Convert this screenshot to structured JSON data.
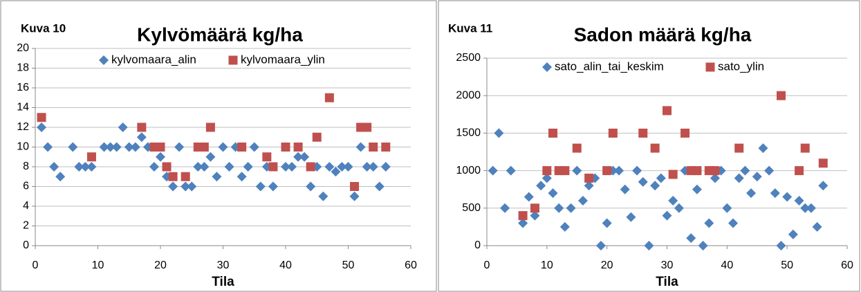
{
  "chart_data": [
    {
      "type": "scatter",
      "label": "Kuva 10",
      "title": "Kylvömäärä kg/ha",
      "xlabel": "Tila",
      "xlim": [
        0,
        60
      ],
      "xticks": [
        0,
        10,
        20,
        30,
        40,
        50,
        60
      ],
      "ylim": [
        0,
        20
      ],
      "yticks": [
        0,
        2,
        4,
        6,
        8,
        10,
        12,
        14,
        16,
        18,
        20
      ],
      "grid": true,
      "series": [
        {
          "name": "kylvomaara_alin",
          "color": "#4f81bd",
          "marker": "diamond",
          "x": [
            1,
            2,
            3,
            4,
            6,
            7,
            8,
            9,
            11,
            12,
            13,
            14,
            15,
            16,
            17,
            18,
            19,
            20,
            21,
            22,
            23,
            24,
            25,
            26,
            27,
            28,
            29,
            30,
            31,
            32,
            33,
            34,
            35,
            36,
            37,
            38,
            40,
            41,
            42,
            43,
            44,
            45,
            46,
            47,
            48,
            49,
            50,
            51,
            52,
            53,
            54,
            55,
            56
          ],
          "values": [
            12,
            10,
            8,
            7,
            10,
            8,
            8,
            8,
            10,
            10,
            10,
            12,
            10,
            10,
            11,
            10,
            8,
            9,
            7,
            6,
            10,
            6,
            6,
            8,
            8,
            9,
            7,
            10,
            8,
            10,
            7,
            8,
            10,
            6,
            8,
            6,
            8,
            8,
            9,
            9,
            6,
            8,
            5,
            8,
            7.5,
            8,
            8,
            5,
            10,
            8,
            8,
            6,
            8
          ]
        },
        {
          "name": "kylvomaara_ylin",
          "color": "#c0504d",
          "marker": "square",
          "x": [
            1,
            9,
            17,
            19,
            20,
            21,
            22,
            24,
            26,
            27,
            28,
            33,
            37,
            38,
            40,
            42,
            44,
            45,
            47,
            51,
            52,
            53,
            54,
            56
          ],
          "values": [
            13,
            9,
            12,
            10,
            10,
            8,
            7,
            7,
            10,
            10,
            12,
            10,
            9,
            8,
            10,
            10,
            8,
            11,
            15,
            6,
            12,
            12,
            10,
            10
          ]
        }
      ]
    },
    {
      "type": "scatter",
      "label": "Kuva 11",
      "title": "Sadon määrä kg/ha",
      "xlabel": "Tila",
      "xlim": [
        0,
        60
      ],
      "xticks": [
        0,
        10,
        20,
        30,
        40,
        50,
        60
      ],
      "ylim": [
        0,
        2500
      ],
      "yticks": [
        0,
        500,
        1000,
        1500,
        2000,
        2500
      ],
      "grid": true,
      "series": [
        {
          "name": "sato_alin_tai_keskim",
          "color": "#4f81bd",
          "marker": "diamond",
          "x": [
            1,
            2,
            3,
            4,
            6,
            7,
            8,
            9,
            10,
            11,
            12,
            13,
            14,
            15,
            16,
            17,
            18,
            19,
            20,
            21,
            22,
            23,
            24,
            25,
            26,
            27,
            28,
            29,
            30,
            31,
            32,
            33,
            34,
            35,
            36,
            37,
            38,
            39,
            40,
            41,
            42,
            43,
            44,
            45,
            46,
            47,
            48,
            49,
            50,
            51,
            52,
            53,
            54,
            55,
            56
          ],
          "values": [
            1000,
            1500,
            500,
            1000,
            300,
            650,
            400,
            800,
            900,
            700,
            500,
            250,
            500,
            1000,
            600,
            800,
            900,
            0,
            300,
            1000,
            1000,
            750,
            380,
            1000,
            850,
            0,
            800,
            900,
            400,
            600,
            500,
            1000,
            100,
            750,
            0,
            300,
            900,
            1000,
            500,
            300,
            900,
            1000,
            700,
            920,
            1300,
            1000,
            700,
            0,
            650,
            150,
            600,
            500,
            500,
            250,
            800
          ]
        },
        {
          "name": "sato_ylin",
          "color": "#c0504d",
          "marker": "square",
          "x": [
            6,
            8,
            10,
            11,
            12,
            13,
            15,
            17,
            20,
            21,
            26,
            28,
            30,
            31,
            33,
            34,
            35,
            37,
            38,
            42,
            49,
            52,
            53,
            56
          ],
          "values": [
            400,
            500,
            1000,
            1500,
            1000,
            1000,
            1300,
            900,
            1000,
            1500,
            1500,
            1300,
            1800,
            950,
            1500,
            1000,
            1000,
            1000,
            1000,
            1300,
            2000,
            1000,
            1300,
            1100
          ]
        }
      ]
    }
  ]
}
